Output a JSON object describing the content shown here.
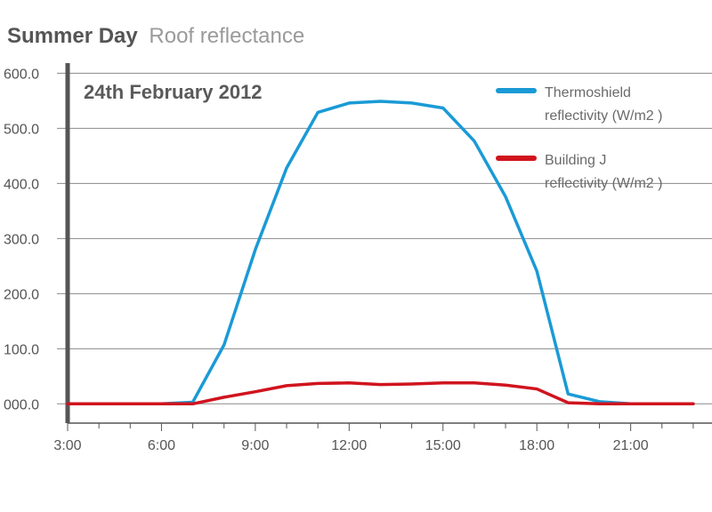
{
  "chart_data": {
    "type": "line",
    "title": "Summer Day",
    "subtitle": "Roof reflectance",
    "annotation": "24th February 2012",
    "x": [
      3,
      4,
      5,
      6,
      7,
      8,
      9,
      10,
      11,
      12,
      13,
      14,
      15,
      16,
      17,
      18,
      19,
      20,
      21,
      22,
      23
    ],
    "x_ticks": [
      3,
      6,
      9,
      12,
      15,
      18,
      21
    ],
    "x_tick_labels": [
      "3:00",
      "6:00",
      "9:00",
      "12:00",
      "15:00",
      "18:00",
      "21:00"
    ],
    "xlim": [
      3,
      23.6
    ],
    "y_ticks": [
      0,
      100,
      200,
      300,
      400,
      500,
      600
    ],
    "y_tick_labels": [
      "000.0",
      "100.0",
      "200.0",
      "300.0",
      "400.0",
      "500.0",
      "600.0"
    ],
    "ylim": [
      -35,
      612
    ],
    "grid": true,
    "legend_position": "top-right",
    "series": [
      {
        "name": "Thermoshield reflectivity (W/m2 )",
        "name_lines": [
          "Thermoshield",
          "reflectivity (W/m2 )"
        ],
        "color": "#1a9ad6",
        "values": [
          0,
          0,
          0,
          0,
          3,
          107,
          280,
          428,
          529,
          546,
          549,
          546,
          537,
          477,
          376,
          241,
          18,
          4,
          0,
          0,
          0
        ]
      },
      {
        "name": "Building J reflectivity (W/m2 )",
        "name_lines": [
          "Building J",
          "reflectivity (W/m2 )"
        ],
        "color": "#d0141e",
        "values": [
          0,
          0,
          0,
          0,
          0,
          12,
          22,
          33,
          37,
          38,
          35,
          36,
          38,
          38,
          34,
          27,
          2,
          0,
          0,
          0,
          0
        ]
      }
    ]
  }
}
